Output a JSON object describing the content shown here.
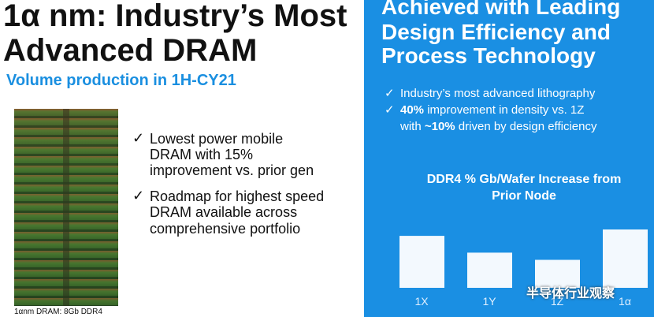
{
  "left": {
    "title": [
      "1α nm: Industry’s Most",
      "Advanced DRAM"
    ],
    "subtitle": "Volume production in 1H-CY21",
    "image_caption": "1αnm DRAM: 8Gb DDR4",
    "bullets": [
      [
        "Lowest power mobile",
        "DRAM with 15%",
        "improvement vs. prior gen"
      ],
      [
        "Roadmap for highest speed",
        "DRAM available across",
        "comprehensive portfolio"
      ]
    ]
  },
  "right": {
    "title": [
      "Achieved with Leading",
      "Design Efficiency and",
      "Process Technology"
    ],
    "bullets": [
      {
        "text": "Industry’s most advanced lithography"
      },
      {
        "bold": "40%",
        "text": " improvement in density vs. 1Z"
      },
      {
        "lead": "with ",
        "bold": "~10%",
        "text": " driven by design efficiency"
      }
    ],
    "watermark": "半导体行业观察"
  },
  "chart_data": {
    "type": "bar",
    "title": [
      "DDR4 % Gb/Wafer Increase from",
      "Prior Node"
    ],
    "categories": [
      "1X",
      "1Y",
      "1Z",
      "1α"
    ],
    "values": [
      65,
      44,
      35,
      73
    ],
    "color": "#ffffff"
  }
}
